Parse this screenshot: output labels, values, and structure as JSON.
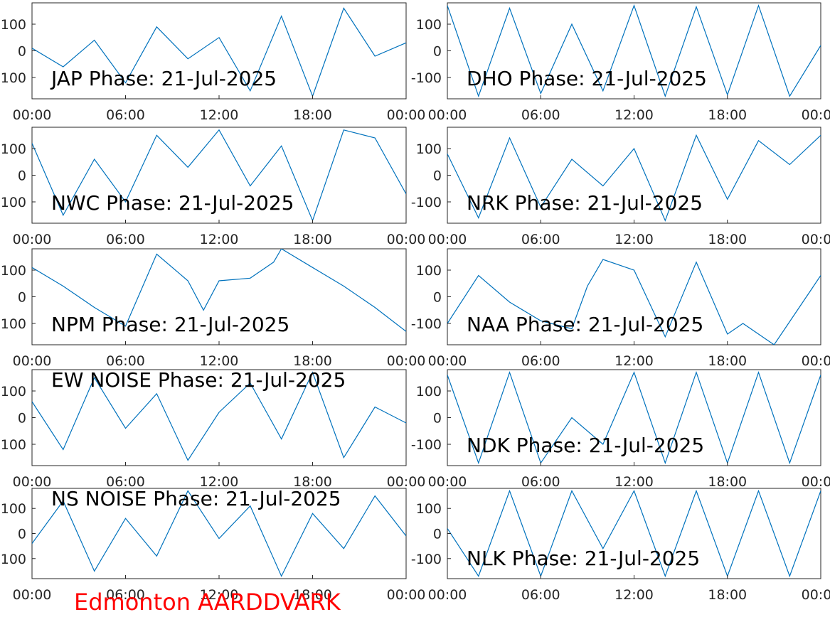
{
  "figure": {
    "footer_label": "Edmonton AARDDVARK",
    "footer_color": "#ff0000",
    "series_color": "#0072bd"
  },
  "chart_data": [
    {
      "type": "line",
      "title": "JAP Phase: 21-Jul-2025",
      "xlabel": "",
      "ylabel": "",
      "xlim": [
        "00:00",
        "00:00"
      ],
      "xticks": [
        "00:00",
        "06:00",
        "12:00",
        "18:00",
        "00:00"
      ],
      "ylim": [
        -180,
        180
      ],
      "yticks": [
        "-100",
        "0",
        "100"
      ],
      "grid": false,
      "x": [
        "00:00",
        "02:00",
        "04:00",
        "06:00",
        "08:00",
        "10:00",
        "12:00",
        "14:00",
        "16:00",
        "18:00",
        "20:00",
        "22:00",
        "24:00"
      ],
      "y": [
        10,
        -60,
        40,
        -120,
        90,
        -30,
        50,
        -150,
        130,
        -170,
        160,
        -20,
        30
      ]
    },
    {
      "type": "line",
      "title": "DHO Phase: 21-Jul-2025",
      "xlabel": "",
      "ylabel": "",
      "xlim": [
        "00:00",
        "00:00"
      ],
      "xticks": [
        "00:00",
        "06:00",
        "12:00",
        "18:00",
        "00:00"
      ],
      "ylim": [
        -180,
        180
      ],
      "yticks": [
        "-100",
        "0",
        "100"
      ],
      "grid": false,
      "x": [
        "00:00",
        "02:00",
        "04:00",
        "06:00",
        "08:00",
        "10:00",
        "12:00",
        "14:00",
        "16:00",
        "18:00",
        "20:00",
        "22:00",
        "24:00"
      ],
      "y": [
        170,
        -170,
        160,
        -160,
        100,
        -150,
        170,
        -170,
        165,
        -165,
        170,
        -170,
        20
      ]
    },
    {
      "type": "line",
      "title": "NWC Phase: 21-Jul-2025",
      "xlabel": "",
      "ylabel": "",
      "xlim": [
        "00:00",
        "00:00"
      ],
      "xticks": [
        "00:00",
        "06:00",
        "12:00",
        "18:00",
        "00:00"
      ],
      "ylim": [
        -180,
        180
      ],
      "yticks": [
        "-100",
        "0",
        "100"
      ],
      "grid": false,
      "x": [
        "00:00",
        "02:00",
        "04:00",
        "06:00",
        "08:00",
        "10:00",
        "12:00",
        "14:00",
        "16:00",
        "18:00",
        "20:00",
        "22:00",
        "24:00"
      ],
      "y": [
        120,
        -150,
        60,
        -100,
        150,
        30,
        170,
        -40,
        110,
        -170,
        170,
        140,
        -70
      ]
    },
    {
      "type": "line",
      "title": "NRK Phase: 21-Jul-2025",
      "xlabel": "",
      "ylabel": "",
      "xlim": [
        "00:00",
        "00:00"
      ],
      "xticks": [
        "00:00",
        "06:00",
        "12:00",
        "18:00",
        "00:00"
      ],
      "ylim": [
        -180,
        180
      ],
      "yticks": [
        "-100",
        "0",
        "100"
      ],
      "grid": false,
      "x": [
        "00:00",
        "02:00",
        "04:00",
        "06:00",
        "08:00",
        "10:00",
        "12:00",
        "14:00",
        "16:00",
        "18:00",
        "20:00",
        "22:00",
        "24:00"
      ],
      "y": [
        80,
        -160,
        140,
        -120,
        60,
        -40,
        100,
        -170,
        150,
        -90,
        130,
        40,
        150
      ]
    },
    {
      "type": "line",
      "title": "NPM Phase: 21-Jul-2025",
      "xlabel": "",
      "ylabel": "",
      "xlim": [
        "00:00",
        "00:00"
      ],
      "xticks": [
        "00:00",
        "06:00",
        "12:00",
        "18:00",
        "00:00"
      ],
      "ylim": [
        -180,
        180
      ],
      "yticks": [
        "-100",
        "0",
        "100"
      ],
      "grid": false,
      "x": [
        "00:00",
        "02:00",
        "04:00",
        "06:00",
        "08:00",
        "10:00",
        "11:00",
        "12:00",
        "14:00",
        "15:30",
        "16:00",
        "18:00",
        "20:00",
        "22:00",
        "24:00"
      ],
      "y": [
        110,
        40,
        -40,
        -110,
        160,
        60,
        -50,
        60,
        70,
        130,
        180,
        110,
        40,
        -40,
        -130
      ]
    },
    {
      "type": "line",
      "title": "NAA Phase: 21-Jul-2025",
      "xlabel": "",
      "ylabel": "",
      "xlim": [
        "00:00",
        "00:00"
      ],
      "xticks": [
        "00:00",
        "06:00",
        "12:00",
        "18:00",
        "00:00"
      ],
      "ylim": [
        -180,
        180
      ],
      "yticks": [
        "-100",
        "0",
        "100"
      ],
      "grid": false,
      "x": [
        "00:00",
        "02:00",
        "04:00",
        "06:00",
        "08:00",
        "09:00",
        "10:00",
        "12:00",
        "14:00",
        "16:00",
        "18:00",
        "19:00",
        "21:00",
        "24:00"
      ],
      "y": [
        -100,
        80,
        -20,
        -90,
        -120,
        40,
        140,
        100,
        -150,
        130,
        -140,
        -100,
        -180,
        80
      ]
    },
    {
      "type": "line",
      "title": "EW NOISE Phase: 21-Jul-2025",
      "xlabel": "",
      "ylabel": "",
      "xlim": [
        "00:00",
        "00:00"
      ],
      "xticks": [
        "00:00",
        "06:00",
        "12:00",
        "18:00",
        "00:00"
      ],
      "ylim": [
        -180,
        180
      ],
      "yticks": [
        "-100",
        "0",
        "100"
      ],
      "grid": false,
      "x": [
        "00:00",
        "02:00",
        "04:00",
        "06:00",
        "08:00",
        "10:00",
        "12:00",
        "14:00",
        "16:00",
        "18:00",
        "20:00",
        "22:00",
        "24:00"
      ],
      "y": [
        60,
        -120,
        150,
        -40,
        90,
        -160,
        20,
        130,
        -80,
        170,
        -150,
        40,
        -20
      ]
    },
    {
      "type": "line",
      "title": "NDK Phase: 21-Jul-2025",
      "xlabel": "",
      "ylabel": "",
      "xlim": [
        "00:00",
        "00:00"
      ],
      "xticks": [
        "00:00",
        "06:00",
        "12:00",
        "18:00",
        "00:00"
      ],
      "ylim": [
        -180,
        180
      ],
      "yticks": [
        "-100",
        "0",
        "100"
      ],
      "grid": false,
      "x": [
        "00:00",
        "02:00",
        "04:00",
        "06:00",
        "08:00",
        "10:00",
        "12:00",
        "14:00",
        "16:00",
        "18:00",
        "20:00",
        "22:00",
        "24:00"
      ],
      "y": [
        160,
        -170,
        170,
        -170,
        0,
        -100,
        170,
        -170,
        170,
        -170,
        170,
        -170,
        160
      ]
    },
    {
      "type": "line",
      "title": "NS NOISE Phase: 21-Jul-2025",
      "xlabel": "",
      "ylabel": "",
      "xlim": [
        "00:00",
        "00:00"
      ],
      "xticks": [
        "00:00",
        "06:00",
        "12:00",
        "18:00",
        "00:00"
      ],
      "ylim": [
        -180,
        180
      ],
      "yticks": [
        "-100",
        "0",
        "100"
      ],
      "grid": false,
      "x": [
        "00:00",
        "02:00",
        "04:00",
        "06:00",
        "08:00",
        "10:00",
        "12:00",
        "14:00",
        "16:00",
        "18:00",
        "20:00",
        "22:00",
        "24:00"
      ],
      "y": [
        -40,
        130,
        -150,
        60,
        -90,
        170,
        -20,
        110,
        -170,
        80,
        -60,
        150,
        -10
      ]
    },
    {
      "type": "line",
      "title": "NLK Phase: 21-Jul-2025",
      "xlabel": "",
      "ylabel": "",
      "xlim": [
        "00:00",
        "00:00"
      ],
      "xticks": [
        "00:00",
        "06:00",
        "12:00",
        "18:00",
        "00:00"
      ],
      "ylim": [
        -180,
        180
      ],
      "yticks": [
        "-100",
        "0",
        "100"
      ],
      "grid": false,
      "x": [
        "00:00",
        "02:00",
        "04:00",
        "06:00",
        "08:00",
        "10:00",
        "12:00",
        "14:00",
        "16:00",
        "18:00",
        "20:00",
        "22:00",
        "24:00"
      ],
      "y": [
        20,
        -170,
        170,
        -170,
        170,
        -60,
        170,
        -170,
        170,
        -170,
        170,
        -170,
        170
      ]
    }
  ]
}
